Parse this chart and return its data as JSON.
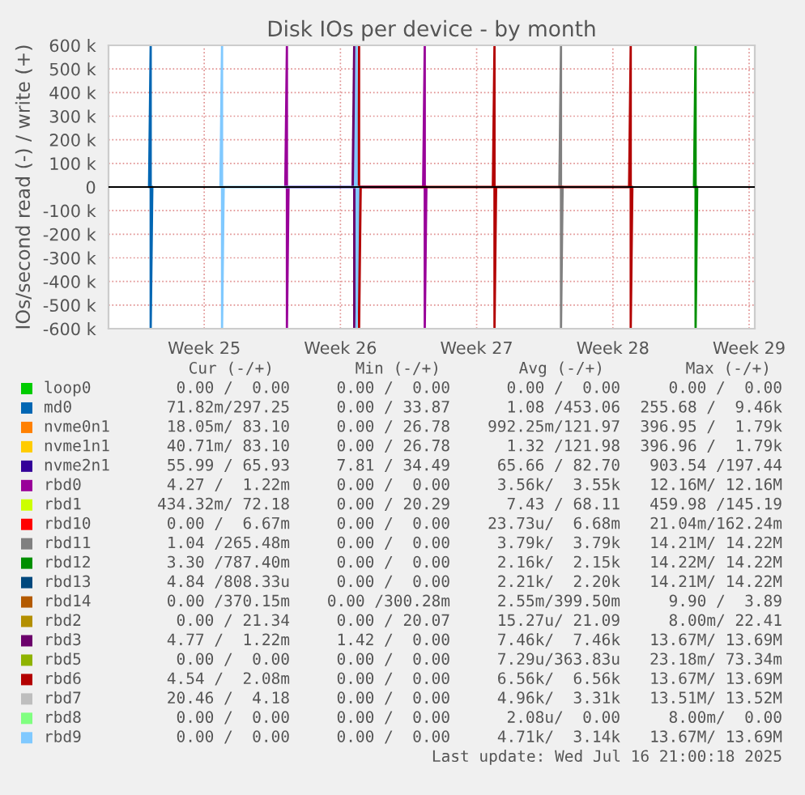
{
  "chart_data": {
    "type": "line",
    "title": "Disk IOs per device - by month",
    "ylabel": "IOs/second read (-) / write (+)",
    "xlim": [
      "2025-06-11T02:00",
      "2025-07-14T07:00"
    ],
    "xticks": [
      {
        "value": "2025-06-16",
        "label": "Week 25"
      },
      {
        "value": "2025-06-23",
        "label": "Week 26"
      },
      {
        "value": "2025-06-30",
        "label": "Week 27"
      },
      {
        "value": "2025-07-07",
        "label": "Week 28"
      },
      {
        "value": "2025-07-14",
        "label": "Week 29"
      }
    ],
    "ylim": [
      -600000,
      600000
    ],
    "yticks": [
      {
        "value": -600000,
        "label": "-600 k"
      },
      {
        "value": -500000,
        "label": "-500 k"
      },
      {
        "value": -400000,
        "label": "-400 k"
      },
      {
        "value": -300000,
        "label": "-300 k"
      },
      {
        "value": -200000,
        "label": "-200 k"
      },
      {
        "value": -100000,
        "label": "-100 k"
      },
      0,
      {
        "value": 100000,
        "label": "100 k"
      },
      {
        "value": 200000,
        "label": "200 k"
      },
      {
        "value": 300000,
        "label": "300 k"
      },
      {
        "value": 400000,
        "label": "400 k"
      },
      {
        "value": 500000,
        "label": "500 k"
      },
      {
        "value": 600000,
        "label": "600 k"
      }
    ],
    "grid": true,
    "legend": "bottom",
    "marker": "none",
    "line_style": "solid",
    "ref_lines": [
      {
        "axis": "y",
        "value": 0,
        "color": "#000000"
      }
    ],
    "series": [
      {
        "name": "loop0",
        "color": "#00cc00"
      },
      {
        "name": "md0",
        "color": "#0066b3",
        "x": [
          "2025-06-13T04:00",
          "2025-06-13T06:00",
          "2025-06-13T06:00",
          "2025-06-13T08:00"
        ],
        "values": [
          0,
          600000,
          -600000,
          0
        ]
      },
      {
        "name": "nvme0n1",
        "color": "#ff8000"
      },
      {
        "name": "nvme1n1",
        "color": "#ffcc00"
      },
      {
        "name": "nvme2n1",
        "color": "#330099"
      },
      {
        "name": "rbd0",
        "color": "#990099",
        "x": [
          "2025-06-20T04:00",
          "2025-06-20T06:00",
          "2025-06-20T06:00",
          "2025-06-20T08:00",
          "2025-06-27T06:00",
          "2025-06-27T08:00",
          "2025-06-27T08:00",
          "2025-06-27T10:00"
        ],
        "values": [
          0,
          600000,
          -600000,
          0,
          0,
          600000,
          -600000,
          0
        ]
      },
      {
        "name": "rbd1",
        "color": "#ccff00"
      },
      {
        "name": "rbd10",
        "color": "#ff0000"
      },
      {
        "name": "rbd11",
        "color": "#808080",
        "x": [
          "2025-07-04T06:00",
          "2025-07-04T08:00",
          "2025-07-04T08:00",
          "2025-07-04T10:00"
        ],
        "values": [
          0,
          600000,
          -600000,
          0
        ]
      },
      {
        "name": "rbd12",
        "color": "#008f00",
        "x": [
          "2025-07-11T04:00",
          "2025-07-11T06:00",
          "2025-07-11T06:00",
          "2025-07-11T08:00"
        ],
        "values": [
          0,
          600000,
          -600000,
          0
        ]
      },
      {
        "name": "rbd13",
        "color": "#00487d"
      },
      {
        "name": "rbd14",
        "color": "#b35a00"
      },
      {
        "name": "rbd2",
        "color": "#b38f00"
      },
      {
        "name": "rbd3",
        "color": "#6b006b",
        "x": [
          "2025-06-23T15:00",
          "2025-06-23T17:00",
          "2025-06-23T17:00",
          "2025-06-23T19:00"
        ],
        "values": [
          0,
          600000,
          -600000,
          0
        ]
      },
      {
        "name": "rbd5",
        "color": "#8fb300"
      },
      {
        "name": "rbd6",
        "color": "#b30000",
        "x": [
          "2025-06-23T21:00",
          "2025-06-23T23:00",
          "2025-06-23T23:00",
          "2025-06-24T01:00",
          "2025-06-30T20:00",
          "2025-06-30T22:00",
          "2025-06-30T22:00",
          "2025-07-01T00:00",
          "2025-07-07T20:00",
          "2025-07-07T22:00",
          "2025-07-07T22:00",
          "2025-07-08T00:00"
        ],
        "values": [
          0,
          600000,
          -600000,
          0,
          0,
          600000,
          -600000,
          0,
          0,
          600000,
          -600000,
          0
        ]
      },
      {
        "name": "rbd7",
        "color": "#bebebe"
      },
      {
        "name": "rbd8",
        "color": "#80ff80"
      },
      {
        "name": "rbd9",
        "color": "#80c9ff",
        "x": [
          "2025-06-16T20:00",
          "2025-06-16T22:00",
          "2025-06-16T22:00",
          "2025-06-17T00:00",
          "2025-06-23T18:00",
          "2025-06-23T20:00",
          "2025-06-23T20:00",
          "2025-06-23T22:00"
        ],
        "values": [
          0,
          600000,
          -600000,
          0,
          0,
          600000,
          -600000,
          0
        ]
      }
    ],
    "annotations": [
      "Cur (-/+)",
      "Min (-/+)",
      "Avg (-/+)",
      "Max (-/+)",
      "0.00 /  0.00",
      "0.00 /  0.00",
      "0.00 /  0.00",
      "0.00 /  0.00",
      "71.82m/297.25",
      "0.00 / 33.87",
      "1.08 /453.06",
      "255.68 /  9.46k",
      "18.05m/ 83.10",
      "0.00 / 26.78",
      "992.25m/121.97",
      "396.95 /  1.79k",
      "40.71m/ 83.10",
      "0.00 / 26.78",
      "1.32 /121.98",
      "396.96 /  1.79k",
      "55.99 / 65.93",
      "7.81 / 34.49",
      "65.66 / 82.70",
      "903.54 /197.44",
      "4.27 /  1.22m",
      "0.00 /  0.00",
      "3.56k/  3.55k",
      "12.16M/ 12.16M",
      "434.32m/ 72.18",
      "0.00 / 20.29",
      "7.43 / 68.11",
      "459.98 /145.19",
      "0.00 /  6.67m",
      "0.00 /  0.00",
      "23.73u/  6.68m",
      "21.04m/162.24m",
      "1.04 /265.48m",
      "0.00 /  0.00",
      "3.79k/  3.79k",
      "14.21M/ 14.22M",
      "3.30 /787.40m",
      "0.00 /  0.00",
      "2.16k/  2.15k",
      "14.22M/ 14.22M",
      "4.84 /808.33u",
      "0.00 /  0.00",
      "2.21k/  2.20k",
      "14.21M/ 14.22M",
      "0.00 /370.15m",
      "0.00 /300.28m",
      "2.55m/399.50m",
      "9.90 /  3.89",
      "0.00 / 21.34",
      "0.00 / 20.07",
      "15.27u/ 21.09",
      "8.00m/ 22.41",
      "4.77 /  1.22m",
      "1.42 /  0.00",
      "7.46k/  7.46k",
      "13.67M/ 13.69M",
      "0.00 /  0.00",
      "0.00 /  0.00",
      "7.29u/363.83u",
      "23.18m/ 73.34m",
      "4.54 /  2.08m",
      "0.00 /  0.00",
      "6.56k/  6.56k",
      "13.67M/ 13.69M",
      "20.46 /  4.18",
      "0.00 /  0.00",
      "4.96k/  3.31k",
      "13.51M/ 13.52M",
      "0.00 /  0.00",
      "0.00 /  0.00",
      "2.08u/  0.00",
      "8.00m/  0.00",
      "0.00 /  0.00",
      "0.00 /  0.00",
      "4.71k/  3.14k",
      "13.67M/ 13.69M",
      "Last update: Wed Jul 16 21:00:18 2025"
    ]
  }
}
